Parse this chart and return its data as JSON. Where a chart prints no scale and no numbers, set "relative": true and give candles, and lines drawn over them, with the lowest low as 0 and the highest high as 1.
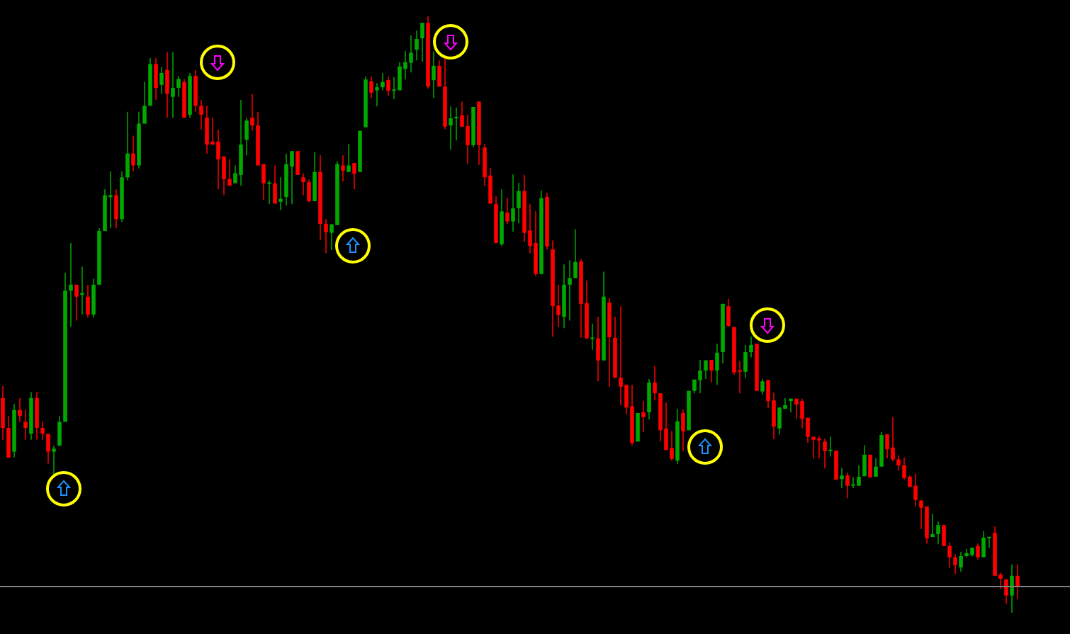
{
  "chart_data": {
    "type": "candlestick",
    "relative": true,
    "categories": [
      null,
      null,
      null,
      null,
      null,
      null,
      null,
      null,
      null,
      null,
      null,
      null,
      null,
      null,
      null,
      null,
      null,
      null,
      null,
      null,
      null,
      null,
      null,
      null,
      null,
      null,
      null,
      null,
      null,
      null,
      null,
      null,
      null,
      null,
      null,
      null,
      null,
      null,
      null,
      null,
      null,
      null,
      null,
      null,
      null,
      null,
      null,
      null,
      null,
      null,
      null,
      null,
      null,
      null,
      null,
      null,
      null,
      null,
      null,
      null,
      null,
      null,
      null,
      null,
      null,
      null,
      null,
      null,
      null,
      null,
      null,
      null,
      null,
      null,
      null,
      null,
      null,
      null,
      null,
      null,
      null,
      null,
      null,
      null,
      null,
      null,
      null,
      null,
      null,
      null,
      null,
      null,
      null,
      null,
      null,
      null,
      null,
      null,
      null,
      null,
      null,
      null,
      null,
      null,
      null,
      null,
      null,
      null,
      null,
      null,
      null,
      null,
      null,
      null,
      null,
      null,
      null,
      null,
      null,
      null,
      null,
      null,
      null,
      null,
      null,
      null,
      null,
      null,
      null,
      null,
      null,
      null,
      null,
      null,
      null,
      null,
      null,
      null,
      null,
      null,
      null,
      null,
      null,
      null,
      null,
      null,
      null,
      null,
      null,
      null,
      null,
      null,
      null,
      null,
      null,
      null,
      null,
      null,
      null,
      null,
      null,
      null,
      null,
      null,
      null,
      null,
      null,
      null,
      null,
      null,
      null,
      null,
      null,
      null,
      null,
      null,
      null,
      null,
      null,
      null
    ],
    "ohlc": [
      [
        0.36,
        0.38,
        0.29,
        0.31
      ],
      [
        0.31,
        0.33,
        0.26,
        0.26
      ],
      [
        0.27,
        0.35,
        0.26,
        0.34
      ],
      [
        0.34,
        0.36,
        0.32,
        0.33
      ],
      [
        0.32,
        0.34,
        0.29,
        0.31
      ],
      [
        0.3,
        0.37,
        0.29,
        0.36
      ],
      [
        0.36,
        0.37,
        0.29,
        0.31
      ],
      [
        0.31,
        0.32,
        0.29,
        0.3
      ],
      [
        0.3,
        0.3,
        0.25,
        0.27
      ],
      [
        0.27,
        0.28,
        0.23,
        0.275
      ],
      [
        0.28,
        0.33,
        0.28,
        0.32
      ],
      [
        0.32,
        0.57,
        0.32,
        0.54
      ],
      [
        0.54,
        0.62,
        0.48,
        0.55
      ],
      [
        0.55,
        0.55,
        0.49,
        0.53
      ],
      [
        0.533,
        0.58,
        0.5,
        0.536
      ],
      [
        0.53,
        0.55,
        0.495,
        0.5
      ],
      [
        0.5,
        0.56,
        0.495,
        0.55
      ],
      [
        0.55,
        0.645,
        0.55,
        0.64
      ],
      [
        0.64,
        0.71,
        0.64,
        0.7
      ],
      [
        0.697,
        0.74,
        0.645,
        0.7
      ],
      [
        0.7,
        0.71,
        0.645,
        0.66
      ],
      [
        0.66,
        0.74,
        0.655,
        0.73
      ],
      [
        0.73,
        0.84,
        0.725,
        0.77
      ],
      [
        0.77,
        0.8,
        0.74,
        0.75
      ],
      [
        0.75,
        0.84,
        0.745,
        0.82
      ],
      [
        0.82,
        0.89,
        0.82,
        0.85
      ],
      [
        0.85,
        0.93,
        0.85,
        0.92
      ],
      [
        0.92,
        0.93,
        0.86,
        0.88
      ],
      [
        0.885,
        0.915,
        0.87,
        0.905
      ],
      [
        0.91,
        0.94,
        0.83,
        0.87
      ],
      [
        0.865,
        0.94,
        0.83,
        0.88
      ],
      [
        0.88,
        0.9,
        0.865,
        0.895
      ],
      [
        0.89,
        0.895,
        0.83,
        0.83
      ],
      [
        0.835,
        0.905,
        0.83,
        0.9
      ],
      [
        0.9,
        0.91,
        0.84,
        0.85
      ],
      [
        0.85,
        0.86,
        0.81,
        0.835
      ],
      [
        0.83,
        0.85,
        0.77,
        0.785
      ],
      [
        0.79,
        0.83,
        0.784,
        0.785
      ],
      [
        0.79,
        0.81,
        0.71,
        0.76
      ],
      [
        0.765,
        0.765,
        0.7,
        0.727
      ],
      [
        0.727,
        0.76,
        0.716,
        0.716
      ],
      [
        0.72,
        0.75,
        0.72,
        0.737
      ],
      [
        0.734,
        0.86,
        0.716,
        0.785
      ],
      [
        0.793,
        0.83,
        0.767,
        0.825
      ],
      [
        0.83,
        0.87,
        0.808,
        0.817
      ],
      [
        0.817,
        0.84,
        0.75,
        0.75
      ],
      [
        0.752,
        0.752,
        0.692,
        0.72
      ],
      [
        0.719,
        0.725,
        0.685,
        0.721
      ],
      [
        0.72,
        0.75,
        0.686,
        0.686
      ],
      [
        0.689,
        0.73,
        0.675,
        0.694
      ],
      [
        0.697,
        0.77,
        0.683,
        0.752
      ],
      [
        0.748,
        0.774,
        0.685,
        0.774
      ],
      [
        0.774,
        0.774,
        0.734,
        0.734
      ],
      [
        0.73,
        0.737,
        0.7,
        0.722
      ],
      [
        0.722,
        0.726,
        0.688,
        0.69
      ],
      [
        0.69,
        0.772,
        0.69,
        0.739
      ],
      [
        0.739,
        0.767,
        0.625,
        0.652
      ],
      [
        0.652,
        0.66,
        0.603,
        0.638
      ],
      [
        0.637,
        0.652,
        0.608,
        0.651
      ],
      [
        0.65,
        0.757,
        0.65,
        0.752
      ],
      [
        0.75,
        0.767,
        0.723,
        0.741
      ],
      [
        0.739,
        0.786,
        0.739,
        0.75
      ],
      [
        0.754,
        0.754,
        0.71,
        0.736
      ],
      [
        0.739,
        0.808,
        0.739,
        0.808
      ],
      [
        0.814,
        0.899,
        0.814,
        0.894
      ],
      [
        0.891,
        0.899,
        0.863,
        0.872
      ],
      [
        0.876,
        0.888,
        0.849,
        0.881
      ],
      [
        0.881,
        0.905,
        0.876,
        0.89
      ],
      [
        0.893,
        0.899,
        0.867,
        0.875
      ],
      [
        0.875,
        0.898,
        0.861,
        0.877
      ],
      [
        0.876,
        0.923,
        0.876,
        0.916
      ],
      [
        0.912,
        0.942,
        0.894,
        0.923
      ],
      [
        0.922,
        0.968,
        0.906,
        0.939
      ],
      [
        0.944,
        0.976,
        0.926,
        0.962
      ],
      [
        0.963,
        0.989,
        0.924,
        0.989
      ],
      [
        0.989,
        1,
        0.879,
        0.882
      ],
      [
        0.893,
        0.941,
        0.863,
        0.917
      ],
      [
        0.917,
        0.926,
        0.882,
        0.882
      ],
      [
        0.882,
        0.93,
        0.811,
        0.815
      ],
      [
        0.817,
        0.849,
        0.776,
        0.829
      ],
      [
        0.829,
        0.847,
        0.792,
        0.831
      ],
      [
        0.834,
        0.857,
        0.815,
        0.815
      ],
      [
        0.816,
        0.835,
        0.753,
        0.784
      ],
      [
        0.784,
        0.848,
        0.78,
        0.848
      ],
      [
        0.857,
        0.857,
        0.751,
        0.784
      ],
      [
        0.78,
        0.786,
        0.716,
        0.73
      ],
      [
        0.733,
        0.746,
        0.686,
        0.686
      ],
      [
        0.685,
        0.698,
        0.62,
        0.62
      ],
      [
        0.618,
        0.71,
        0.615,
        0.673
      ],
      [
        0.671,
        0.695,
        0.652,
        0.656
      ],
      [
        0.656,
        0.735,
        0.639,
        0.678
      ],
      [
        0.678,
        0.721,
        0.653,
        0.707
      ],
      [
        0.707,
        0.734,
        0.621,
        0.637
      ],
      [
        0.641,
        0.685,
        0.603,
        0.615
      ],
      [
        0.62,
        0.673,
        0.564,
        0.568
      ],
      [
        0.568,
        0.708,
        0.567,
        0.695
      ],
      [
        0.697,
        0.704,
        0.609,
        0.614
      ],
      [
        0.609,
        0.624,
        0.463,
        0.514
      ],
      [
        0.515,
        0.55,
        0.479,
        0.499
      ],
      [
        0.496,
        0.584,
        0.477,
        0.55
      ],
      [
        0.55,
        0.591,
        0.49,
        0.561
      ],
      [
        0.561,
        0.643,
        0.561,
        0.588
      ],
      [
        0.589,
        0.593,
        0.461,
        0.518
      ],
      [
        0.519,
        0.557,
        0.46,
        0.46
      ],
      [
        0.459,
        0.485,
        0.441,
        0.461
      ],
      [
        0.46,
        0.496,
        0.388,
        0.423
      ],
      [
        0.423,
        0.572,
        0.423,
        0.53
      ],
      [
        0.52,
        0.527,
        0.379,
        0.462
      ],
      [
        0.461,
        0.496,
        0.394,
        0.394
      ],
      [
        0.394,
        0.514,
        0.348,
        0.379
      ],
      [
        0.382,
        0.382,
        0.333,
        0.344
      ],
      [
        0.346,
        0.382,
        0.281,
        0.285
      ],
      [
        0.287,
        0.335,
        0.287,
        0.335
      ],
      [
        0.336,
        0.355,
        0.303,
        0.328
      ],
      [
        0.336,
        0.392,
        0.324,
        0.386
      ],
      [
        0.386,
        0.414,
        0.356,
        0.368
      ],
      [
        0.368,
        0.368,
        0.287,
        0.306
      ],
      [
        0.309,
        0.352,
        0.273,
        0.273
      ],
      [
        0.276,
        0.305,
        0.255,
        0.258
      ],
      [
        0.255,
        0.342,
        0.249,
        0.321
      ],
      [
        0.335,
        0.341,
        0.271,
        0.304
      ],
      [
        0.306,
        0.372,
        0.306,
        0.372
      ],
      [
        0.372,
        0.391,
        0.368,
        0.391
      ],
      [
        0.39,
        0.424,
        0.368,
        0.406
      ],
      [
        0.406,
        0.424,
        0.392,
        0.423
      ],
      [
        0.424,
        0.424,
        0.386,
        0.406
      ],
      [
        0.406,
        0.451,
        0.382,
        0.436
      ],
      [
        0.437,
        0.518,
        0.418,
        0.518
      ],
      [
        0.514,
        0.526,
        0.479,
        0.481
      ],
      [
        0.479,
        0.479,
        0.399,
        0.403
      ],
      [
        0.406,
        0.422,
        0.368,
        0.404
      ],
      [
        0.404,
        0.449,
        0.394,
        0.437
      ],
      [
        0.437,
        0.463,
        0.428,
        0.449
      ],
      [
        0.451,
        0.451,
        0.372,
        0.372
      ],
      [
        0.371,
        0.392,
        0.366,
        0.388
      ],
      [
        0.39,
        0.39,
        0.343,
        0.355
      ],
      [
        0.356,
        0.369,
        0.291,
        0.312
      ],
      [
        0.309,
        0.344,
        0.299,
        0.344
      ],
      [
        0.342,
        0.36,
        0.342,
        0.348
      ],
      [
        0.355,
        0.359,
        0.336,
        0.359
      ],
      [
        0.359,
        0.359,
        0.325,
        0.349
      ],
      [
        0.355,
        0.359,
        0.309,
        0.325
      ],
      [
        0.327,
        0.327,
        0.285,
        0.295
      ],
      [
        0.295,
        0.295,
        0.259,
        0.29
      ],
      [
        0.292,
        0.296,
        0.259,
        0.289
      ],
      [
        0.287,
        0.292,
        0.242,
        0.271
      ],
      [
        0.271,
        0.295,
        0.262,
        0.273
      ],
      [
        0.272,
        0.272,
        0.223,
        0.223
      ],
      [
        0.224,
        0.243,
        0.209,
        0.23
      ],
      [
        0.23,
        0.235,
        0.192,
        0.213
      ],
      [
        0.213,
        0.227,
        0.209,
        0.215
      ],
      [
        0.213,
        0.247,
        0.213,
        0.228
      ],
      [
        0.229,
        0.281,
        0.229,
        0.265
      ],
      [
        0.265,
        0.265,
        0.227,
        0.227
      ],
      [
        0.228,
        0.259,
        0.228,
        0.245
      ],
      [
        0.245,
        0.303,
        0.245,
        0.298
      ],
      [
        0.299,
        0.299,
        0.259,
        0.274
      ],
      [
        0.277,
        0.328,
        0.254,
        0.257
      ],
      [
        0.257,
        0.264,
        0.238,
        0.247
      ],
      [
        0.247,
        0.26,
        0.223,
        0.226
      ],
      [
        0.228,
        0.23,
        0.211,
        0.211
      ],
      [
        0.213,
        0.233,
        0.179,
        0.189
      ],
      [
        0.188,
        0.189,
        0.14,
        0.176
      ],
      [
        0.178,
        0.178,
        0.116,
        0.125
      ],
      [
        0.127,
        0.166,
        0.127,
        0.132
      ],
      [
        0.132,
        0.153,
        0.115,
        0.147
      ],
      [
        0.147,
        0.147,
        0.112,
        0.112
      ],
      [
        0.112,
        0.118,
        0.075,
        0.093
      ],
      [
        0.093,
        0.099,
        0.065,
        0.08
      ],
      [
        0.076,
        0.102,
        0.069,
        0.095
      ],
      [
        0.095,
        0.107,
        0.093,
        0.1
      ],
      [
        0.097,
        0.109,
        0.094,
        0.109
      ],
      [
        0.112,
        0.116,
        0.089,
        0.093
      ],
      [
        0.093,
        0.137,
        0.093,
        0.126
      ],
      [
        0.125,
        0.127,
        0.109,
        0.127
      ],
      [
        0.134,
        0.145,
        0.062,
        0.062
      ],
      [
        0.064,
        0.067,
        0.04,
        0.057
      ],
      [
        0.056,
        0.056,
        0.015,
        0.029
      ],
      [
        0.029,
        0.081,
        0,
        0.062
      ],
      [
        0.062,
        0.081,
        0.023,
        0.044
      ]
    ],
    "colors": [
      "#ff0000",
      "#ff0000",
      "#00a800",
      "#ff0000",
      "#ff0000",
      "#00a800",
      "#ff0000",
      "#ff0000",
      "#ff0000",
      "#00a800",
      "#00a800",
      "#00a800",
      "#00a800",
      "#ff0000",
      "#00a800",
      "#ff0000",
      "#00a800",
      "#00a800",
      "#00a800",
      "#00a800",
      "#ff0000",
      "#00a800",
      "#00a800",
      "#ff0000",
      "#00a800",
      "#00a800",
      "#00a800",
      "#ff0000",
      "#00a800",
      "#ff0000",
      "#00a800",
      "#00a800",
      "#ff0000",
      "#00a800",
      "#ff0000",
      "#ff0000",
      "#ff0000",
      "#ff0000",
      "#ff0000",
      "#ff0000",
      "#ff0000",
      "#00a800",
      "#00a800",
      "#00a800",
      "#ff0000",
      "#ff0000",
      "#ff0000",
      "#00a800",
      "#ff0000",
      "#00a800",
      "#00a800",
      "#00a800",
      "#ff0000",
      "#ff0000",
      "#ff0000",
      "#00a800",
      "#ff0000",
      "#ff0000",
      "#00a800",
      "#00a800",
      "#ff0000",
      "#00a800",
      "#ff0000",
      "#00a800",
      "#00a800",
      "#ff0000",
      "#00a800",
      "#00a800",
      "#ff0000",
      "#00a800",
      "#00a800",
      "#00a800",
      "#00a800",
      "#00a800",
      "#00a800",
      "#ff0000",
      "#00a800",
      "#ff0000",
      "#ff0000",
      "#00a800",
      "#00a800",
      "#ff0000",
      "#ff0000",
      "#00a800",
      "#ff0000",
      "#ff0000",
      "#ff0000",
      "#ff0000",
      "#00a800",
      "#ff0000",
      "#00a800",
      "#00a800",
      "#ff0000",
      "#ff0000",
      "#ff0000",
      "#00a800",
      "#ff0000",
      "#ff0000",
      "#ff0000",
      "#00a800",
      "#00a800",
      "#00a800",
      "#ff0000",
      "#ff0000",
      "#00a800",
      "#ff0000",
      "#00a800",
      "#ff0000",
      "#ff0000",
      "#ff0000",
      "#ff0000",
      "#ff0000",
      "#00a800",
      "#ff0000",
      "#00a800",
      "#ff0000",
      "#ff0000",
      "#ff0000",
      "#ff0000",
      "#00a800",
      "#ff0000",
      "#00a800",
      "#00a800",
      "#00a800",
      "#00a800",
      "#ff0000",
      "#00a800",
      "#00a800",
      "#ff0000",
      "#ff0000",
      "#ff0000",
      "#00a800",
      "#00a800",
      "#ff0000",
      "#00a800",
      "#ff0000",
      "#ff0000",
      "#00a800",
      "#00a800",
      "#00a800",
      "#ff0000",
      "#ff0000",
      "#ff0000",
      "#ff0000",
      "#ff0000",
      "#ff0000",
      "#00a800",
      "#ff0000",
      "#00a800",
      "#ff0000",
      "#00a800",
      "#00a800",
      "#00a800",
      "#ff0000",
      "#00a800",
      "#00a800",
      "#ff0000",
      "#ff0000",
      "#ff0000",
      "#ff0000",
      "#ff0000",
      "#ff0000",
      "#ff0000",
      "#ff0000",
      "#00a800",
      "#00a800",
      "#ff0000",
      "#ff0000",
      "#ff0000",
      "#00a800",
      "#00a800",
      "#00a800",
      "#ff0000",
      "#00a800",
      "#00a800",
      "#ff0000",
      "#ff0000",
      "#ff0000",
      "#00a800",
      "#ff0000"
    ],
    "ref_lines": [
      {
        "axis": "y",
        "value": 0.044,
        "color": "#808080"
      }
    ]
  }
}
